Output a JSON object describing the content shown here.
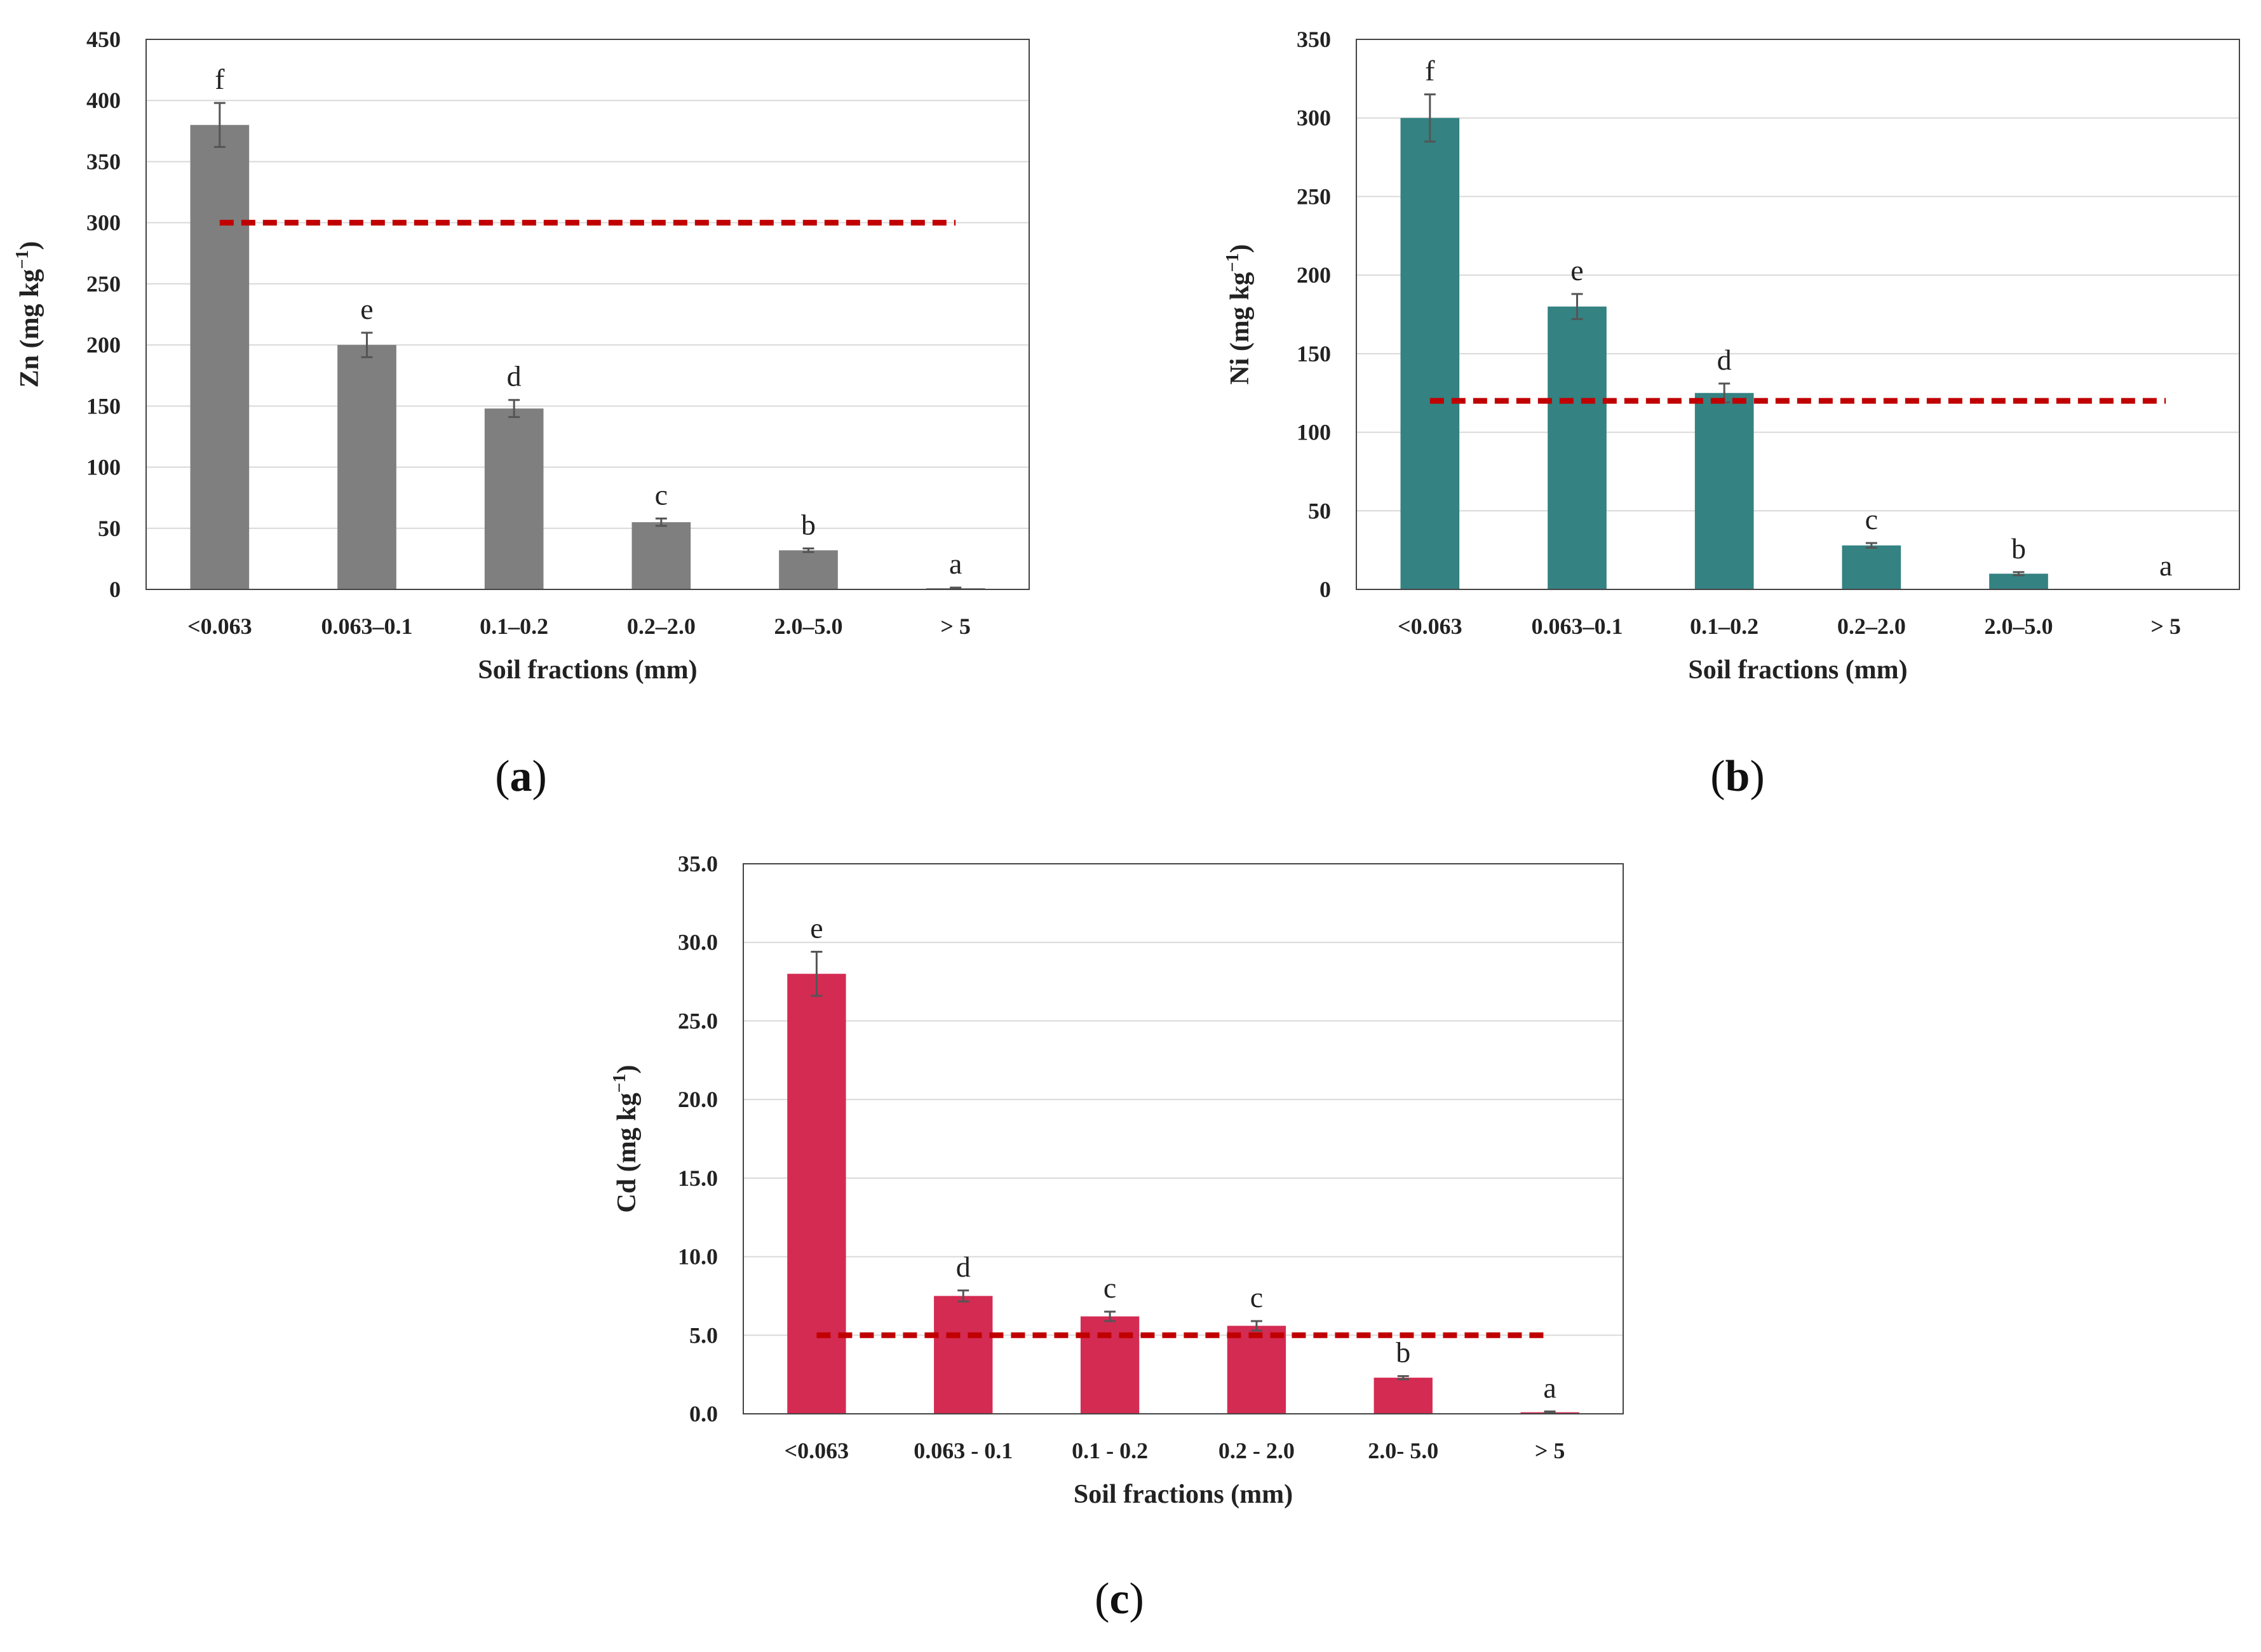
{
  "chart_data": [
    {
      "type": "bar",
      "panel": "a",
      "caption_letter": "a",
      "ylabel_main": "Zn (mg kg",
      "ylabel_sup": "−1",
      "ylabel_close": ")",
      "xlabel": "Soil fractions (mm)",
      "categories": [
        "<0.063",
        "0.063–0.1",
        "0.1–0.2",
        "0.2–2.0",
        "2.0–5.0",
        "> 5"
      ],
      "values": [
        380,
        200,
        148,
        55,
        32,
        1
      ],
      "errors": [
        18,
        10,
        7,
        3,
        1.5,
        0.5
      ],
      "letters": [
        "f",
        "e",
        "d",
        "c",
        "b",
        "a"
      ],
      "ylim": [
        0,
        450
      ],
      "yticks": [
        0,
        50,
        100,
        150,
        200,
        250,
        300,
        350,
        400,
        450
      ],
      "ytick_labels": [
        "0",
        "50",
        "100",
        "150",
        "200",
        "250",
        "300",
        "350",
        "400",
        "450"
      ],
      "threshold": 300,
      "bar_color": "#7f7f7f",
      "threshold_color": "#c00000"
    },
    {
      "type": "bar",
      "panel": "b",
      "caption_letter": "b",
      "ylabel_main": "Ni (mg kg",
      "ylabel_sup": "−1",
      "ylabel_close": ")",
      "xlabel": "Soil fractions (mm)",
      "categories": [
        "<0.063",
        "0.063–0.1",
        "0.1–0.2",
        "0.2–2.0",
        "2.0–5.0",
        "> 5"
      ],
      "values": [
        300,
        180,
        125,
        28,
        10,
        0
      ],
      "errors": [
        15,
        8,
        6,
        1.5,
        1,
        0
      ],
      "letters": [
        "f",
        "e",
        "d",
        "c",
        "b",
        "a"
      ],
      "ylim": [
        0,
        350
      ],
      "yticks": [
        0,
        50,
        100,
        150,
        200,
        250,
        300,
        350
      ],
      "ytick_labels": [
        "0",
        "50",
        "100",
        "150",
        "200",
        "250",
        "300",
        "350"
      ],
      "threshold": 120,
      "bar_color": "#348282",
      "threshold_color": "#c00000"
    },
    {
      "type": "bar",
      "panel": "c",
      "caption_letter": "c",
      "ylabel_main": "Cd (mg kg",
      "ylabel_sup": "−1",
      "ylabel_close": ")",
      "xlabel": "Soil fractions (mm)",
      "categories": [
        "<0.063",
        "0.063 - 0.1",
        "0.1 - 0.2",
        "0.2 - 2.0",
        "2.0- 5.0",
        "> 5"
      ],
      "values": [
        28.0,
        7.5,
        6.2,
        5.6,
        2.3,
        0.1
      ],
      "errors": [
        1.4,
        0.35,
        0.3,
        0.3,
        0.1,
        0.05
      ],
      "letters": [
        "e",
        "d",
        "c",
        "c",
        "b",
        "a"
      ],
      "ylim": [
        0,
        35
      ],
      "yticks": [
        0,
        5,
        10,
        15,
        20,
        25,
        30,
        35
      ],
      "ytick_labels": [
        "0.0",
        "5.0",
        "10.0",
        "15.0",
        "20.0",
        "25.0",
        "30.0",
        "35.0"
      ],
      "threshold": 5,
      "bar_color": "#d42b53",
      "threshold_color": "#c00000"
    }
  ]
}
